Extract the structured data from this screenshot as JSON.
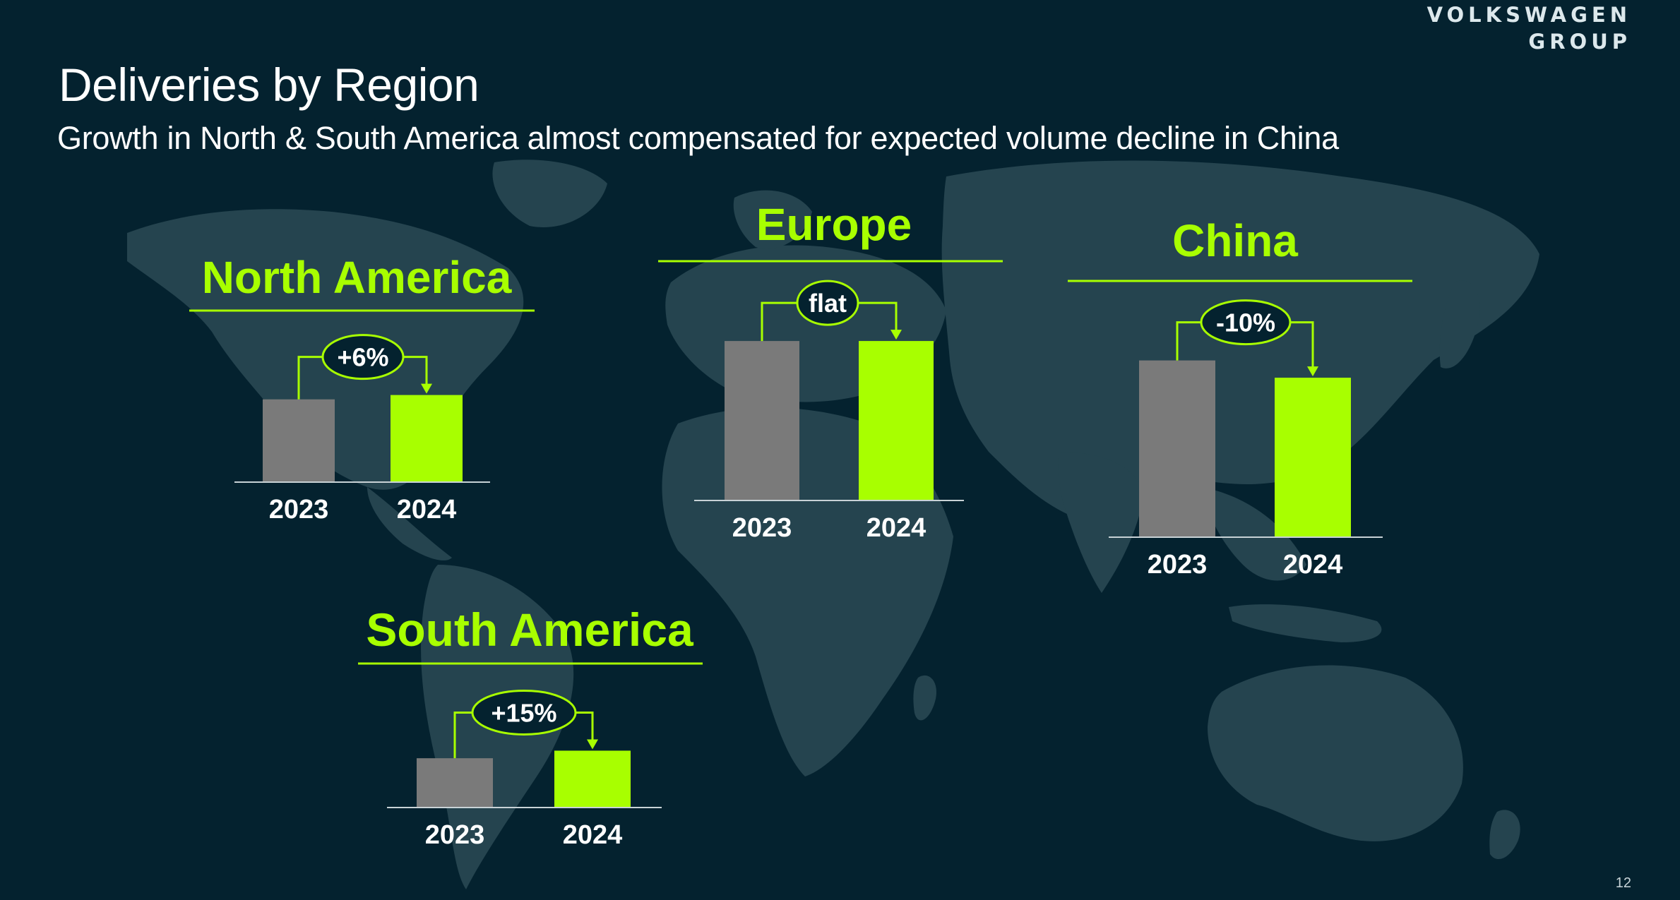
{
  "brand": {
    "line1": "VOLKSWAGEN",
    "line2": "GROUP"
  },
  "title": "Deliveries by Region",
  "subtitle": "Growth in North & South America almost compensated for expected volume decline in China",
  "page_number": "12",
  "colors": {
    "background": "#04222f",
    "map": "#2b4a55",
    "accent": "#a8ff00",
    "bar_2023": "#7a7a7a",
    "text": "#ffffff"
  },
  "chart_data": [
    {
      "type": "bar",
      "title": "North America",
      "categories": [
        "2023",
        "2024"
      ],
      "values": [
        76,
        80
      ],
      "change_label": "+6%"
    },
    {
      "type": "bar",
      "title": "Europe",
      "categories": [
        "2023",
        "2024"
      ],
      "values": [
        147,
        147
      ],
      "change_label": "flat"
    },
    {
      "type": "bar",
      "title": "China",
      "categories": [
        "2023",
        "2024"
      ],
      "values": [
        163,
        147
      ],
      "change_label": "-10%"
    },
    {
      "type": "bar",
      "title": "South America",
      "categories": [
        "2023",
        "2024"
      ],
      "values": [
        45,
        52
      ],
      "change_label": "+15%"
    }
  ]
}
